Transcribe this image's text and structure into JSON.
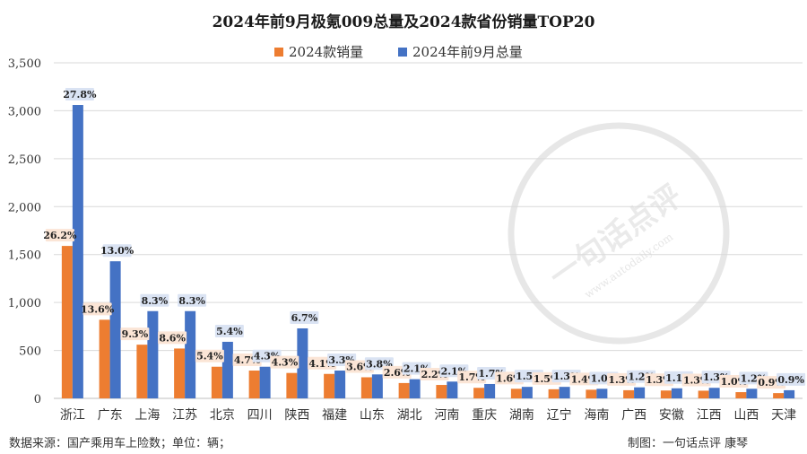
{
  "chart_data": {
    "type": "bar",
    "title": "2024年前9月极氪009总量及2024款省份销量TOP20",
    "categories": [
      "浙江",
      "广东",
      "上海",
      "江苏",
      "北京",
      "四川",
      "陕西",
      "福建",
      "山东",
      "湖北",
      "河南",
      "重庆",
      "湖南",
      "辽宁",
      "海南",
      "广西",
      "安徽",
      "江西",
      "山西",
      "天津"
    ],
    "series": [
      {
        "name": "2024款销量",
        "color": "#ed7d31",
        "values": [
          1590,
          820,
          560,
          520,
          330,
          290,
          265,
          255,
          220,
          160,
          140,
          110,
          100,
          95,
          90,
          85,
          82,
          80,
          65,
          55
        ],
        "labels": [
          "26.2%",
          "13.6%",
          "9.3%",
          "8.6%",
          "5.4%",
          "4.7%",
          "4.3%",
          "4.1%",
          "3.6%",
          "2.6%",
          "2.2%",
          "1.7%",
          "1.6%",
          "1.5%",
          "1.4%",
          "1.3%",
          "1.3%",
          "1.3%",
          "1.0%",
          "0.9%"
        ]
      },
      {
        "name": "2024年前9月总量",
        "color": "#4472c4",
        "values": [
          3060,
          1430,
          910,
          910,
          590,
          330,
          730,
          290,
          250,
          200,
          175,
          150,
          120,
          120,
          100,
          115,
          105,
          110,
          100,
          85
        ],
        "labels": [
          "27.8%",
          "13.0%",
          "8.3%",
          "8.3%",
          "5.4%",
          "4.3%",
          "6.7%",
          "3.3%",
          "3.8%",
          "2.1%",
          "2.1%",
          "1.7%",
          "1.5%",
          "1.3%",
          "1.0%",
          "1.2%",
          "1.1%",
          "1.3%",
          "1.2%",
          "0.9%"
        ]
      }
    ],
    "yticks": [
      "0",
      "500",
      "1,000",
      "1,500",
      "2,000",
      "2,500",
      "3,000",
      "3,500"
    ],
    "ylim": [
      0,
      3500
    ],
    "grid": true,
    "legend_position": "top-center"
  },
  "footer": {
    "source": "数据来源：国产乘用车上险数；单位：辆；",
    "credit": "制图：一句话点评 康琴"
  },
  "watermark": {
    "text": "一句话点评",
    "url": "www.autodaily.com"
  }
}
